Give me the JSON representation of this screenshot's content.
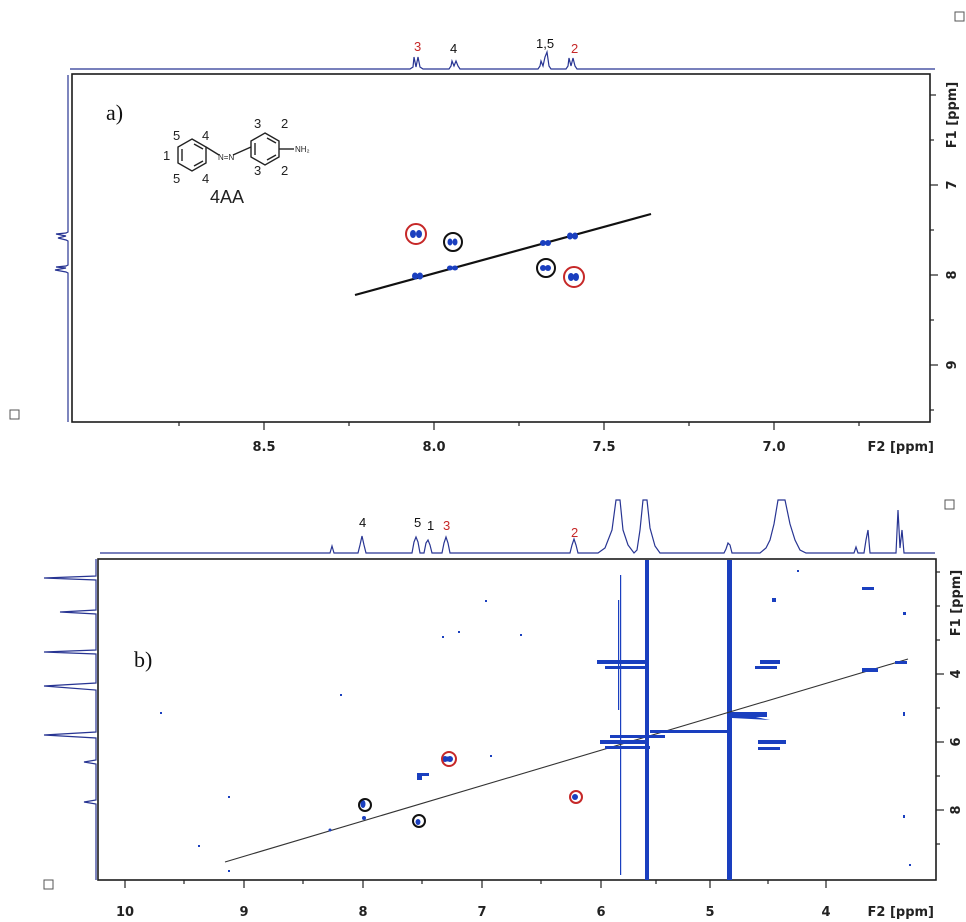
{
  "panel_a": {
    "label": "a)",
    "x_axis": {
      "title": "F2 [ppm]",
      "ticks": [
        "8.5",
        "8.0",
        "7.5",
        "7.0"
      ]
    },
    "y_axis": {
      "title": "F1 [ppm]",
      "ticks": [
        "7",
        "8",
        "9"
      ]
    },
    "peak_labels": [
      {
        "text": "3",
        "color": "#c62828"
      },
      {
        "text": "4",
        "color": "#111111"
      },
      {
        "text": "1,5",
        "color": "#111111"
      },
      {
        "text": "2",
        "color": "#c62828"
      }
    ],
    "molecule": {
      "name": "4AA",
      "substituent": "NH₂",
      "azo": "N=N",
      "atom_numbers": [
        "5",
        "4",
        "1",
        "5",
        "4",
        "3",
        "2",
        "3",
        "2"
      ]
    }
  },
  "panel_b": {
    "label": "b)",
    "x_axis": {
      "title": "F2 [ppm]",
      "ticks": [
        "10",
        "9",
        "8",
        "7",
        "6",
        "5",
        "4"
      ]
    },
    "y_axis": {
      "title": "F1 [ppm]",
      "ticks": [
        "4",
        "6",
        "8"
      ]
    },
    "peak_labels": [
      {
        "text": "4",
        "color": "#111111"
      },
      {
        "text": "5",
        "color": "#111111"
      },
      {
        "text": "1",
        "color": "#111111"
      },
      {
        "text": "3",
        "color": "#c62828"
      },
      {
        "text": "2",
        "color": "#c62828"
      }
    ]
  },
  "colors": {
    "spectrum": "#283593",
    "crosspeak": "#1a3fbf",
    "highlight_red": "#c62828",
    "highlight_black": "#111111"
  }
}
